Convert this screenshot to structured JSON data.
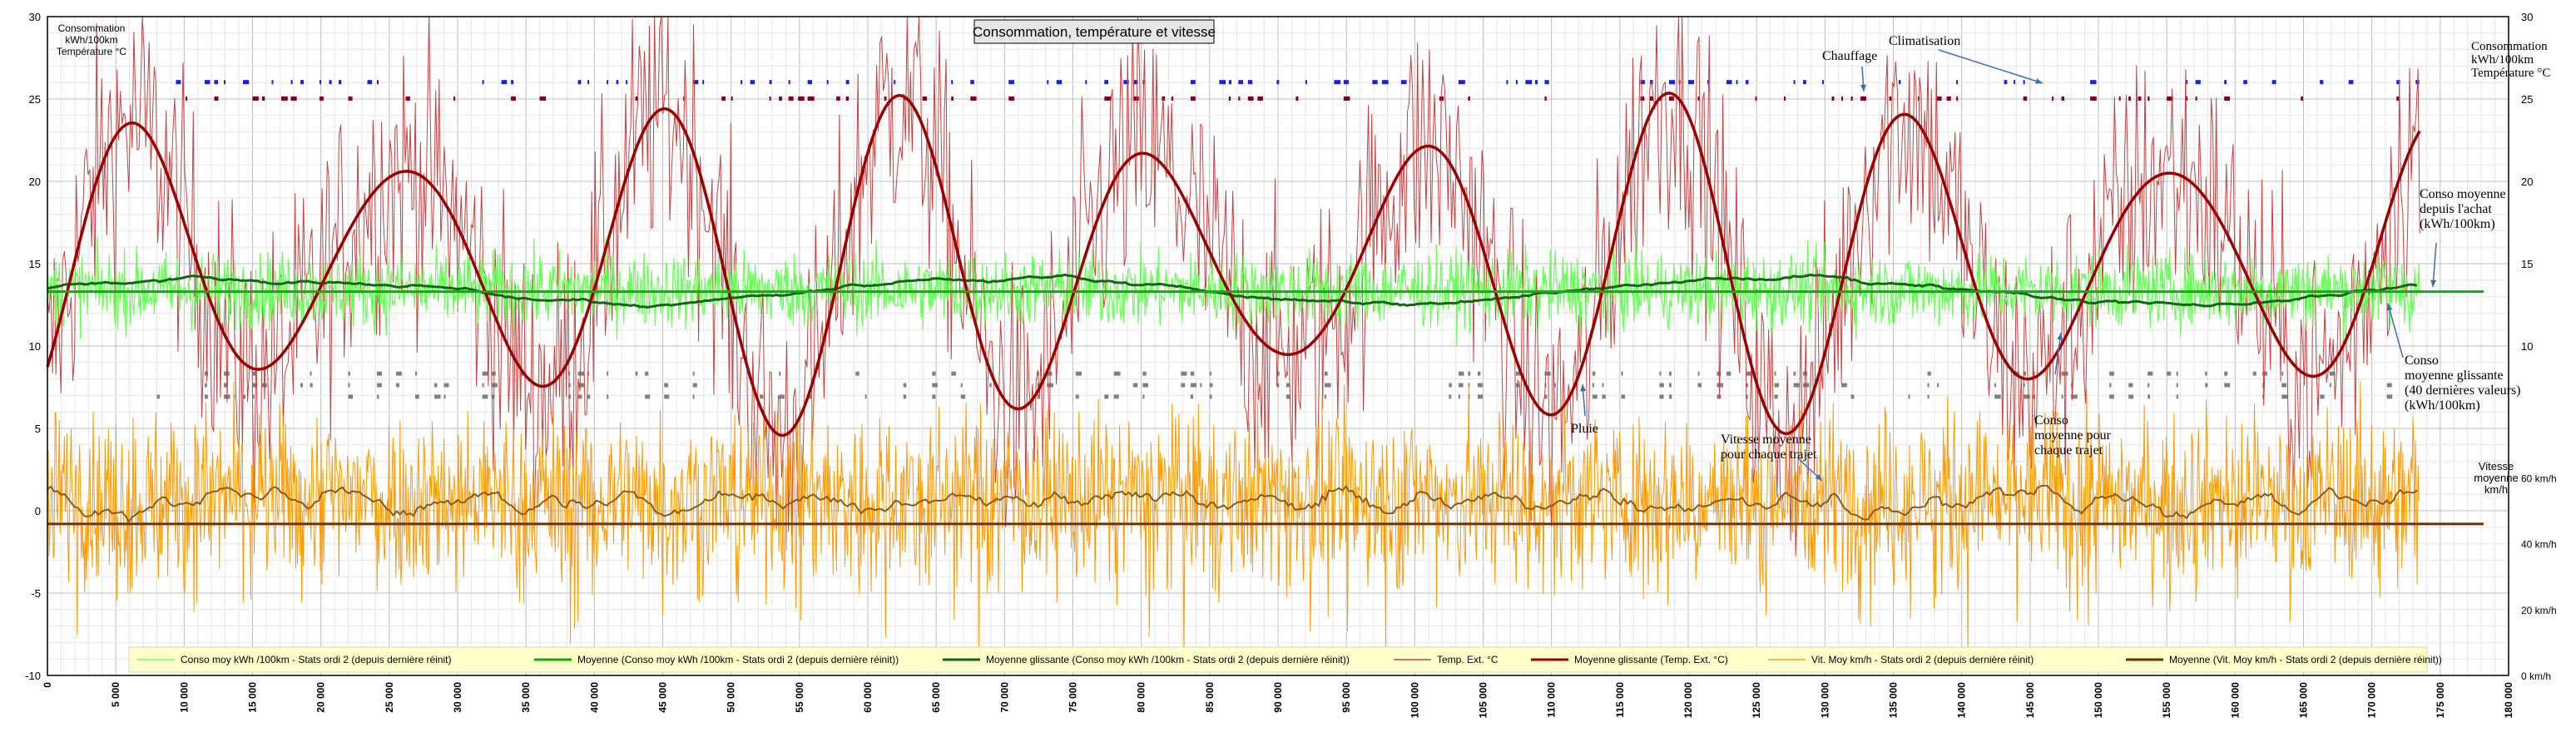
{
  "chart_data": {
    "type": "line",
    "title": "Consommation, température et vitesse",
    "left_axis_label": [
      "Consommation",
      "kWh/100km",
      "Température °C"
    ],
    "right_axis_label": [
      "Consommation",
      "kWh/100km",
      "Température °C"
    ],
    "speed_axis_label": [
      "Vitesse",
      "moyenne",
      "km/h"
    ],
    "x_range": [
      0,
      180000
    ],
    "x_ticks": [
      "0",
      "5 000",
      "10 000",
      "15 000",
      "20 000",
      "25 000",
      "30 000",
      "35 000",
      "40 000",
      "45 000",
      "50 000",
      "55 000",
      "60 000",
      "65 000",
      "70 000",
      "75 000",
      "80 000",
      "85 000",
      "90 000",
      "95 000",
      "100 000",
      "105 000",
      "110 000",
      "115 000",
      "120 000",
      "125 000",
      "130 000",
      "135 000",
      "140 000",
      "145 000",
      "150 000",
      "155 000",
      "160 000",
      "165 000",
      "170 000",
      "175 000",
      "180 000"
    ],
    "y_range": [
      -10,
      30
    ],
    "y_ticks_left": [
      "-10",
      "-5",
      "0",
      "5",
      "10",
      "15",
      "20",
      "25",
      "30"
    ],
    "y_ticks_right": [
      "10",
      "15",
      "20",
      "25",
      "30"
    ],
    "speed_ticks": [
      "0 km/h",
      "20 km/h",
      "40 km/h",
      "60 km/h"
    ],
    "grid": true,
    "legend_position": "bottom",
    "series": [
      {
        "name": "Conso moy kWh /100km - Stats ordi 2 (depuis dernière réinit)",
        "color": "#66ff55",
        "kind": "noisy",
        "mean": 13.4,
        "spread": 1.6
      },
      {
        "name": "Moyenne (Conso moy kWh /100km - Stats ordi 2 (depuis dernière réinit))",
        "color": "#11aa11",
        "kind": "constant",
        "value": 13.3
      },
      {
        "name": "Moyenne glissante (Conso moy kWh /100km - Stats ordi 2 (depuis dernière réinit))",
        "color": "#116611",
        "kind": "smooth",
        "mean": 13.2,
        "spread": 1.0
      },
      {
        "name": "Temp. Ext. °C",
        "color": "#c84040",
        "kind": "noisy",
        "mean": 15,
        "spread": 6
      },
      {
        "name": "Moyenne glissante (Temp. Ext. °C)",
        "color": "#9a0000",
        "kind": "seasonal",
        "mean": 15,
        "spread": 8
      },
      {
        "name": "Vit. Moy km/h - Stats ordi 2 (depuis dernière réinit)",
        "color": "#ff9900",
        "kind": "noisy",
        "mean": 1.0,
        "spread": 3.6
      },
      {
        "name": "Moyenne (Vit. Moy km/h - Stats ordi 2 (depuis dernière réinit))",
        "color": "#6a3300",
        "kind": "constant",
        "value": -0.8
      }
    ],
    "markers": [
      {
        "name": "Climatisation",
        "y": 26,
        "color": "#2020cc"
      },
      {
        "name": "Chauffage",
        "y": 25,
        "color": "#800020"
      },
      {
        "name": "Pluie",
        "y": 8.3,
        "color": "#808080"
      }
    ],
    "annotations": [
      {
        "text": "Chauffage"
      },
      {
        "text": "Climatisation"
      },
      {
        "text": "Conso moyenne depuis l'achat (kWh/100km)"
      },
      {
        "text": "Conso moyenne glissante (40 dernières valeurs) (kWh/100km)"
      },
      {
        "text": "Conso moyenne pour chaque trajet"
      },
      {
        "text": "Vitesse moyenne pour chaque trajet"
      },
      {
        "text": "Pluie"
      }
    ]
  }
}
